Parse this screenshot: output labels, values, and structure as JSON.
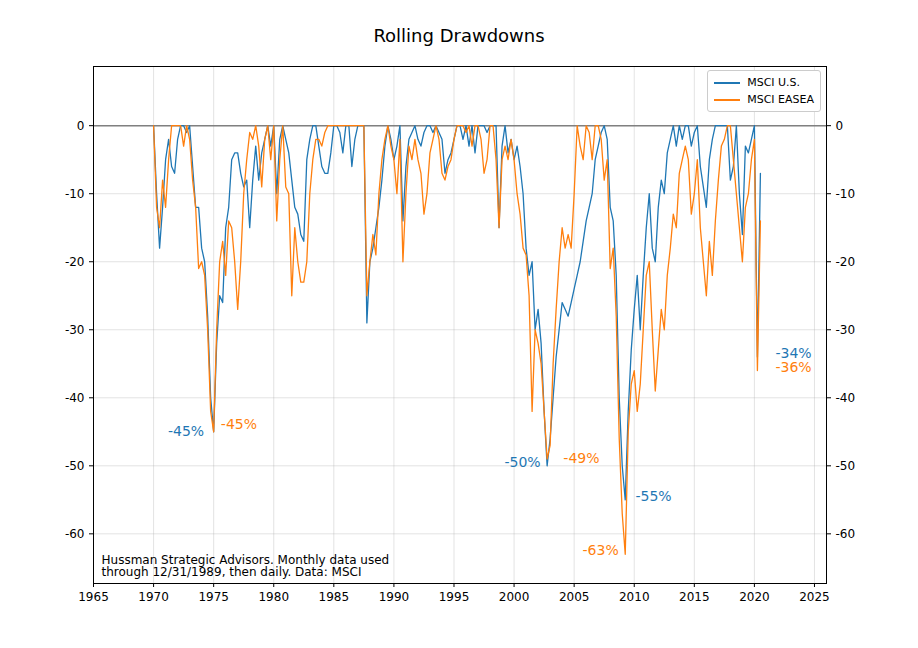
{
  "chart_data": {
    "type": "line",
    "title": "Rolling Drawdowns",
    "x": [
      1970,
      1970.25,
      1970.5,
      1970.75,
      1971,
      1971.25,
      1971.5,
      1971.75,
      1972,
      1972.25,
      1972.5,
      1972.75,
      1973,
      1973.25,
      1973.5,
      1973.75,
      1974,
      1974.25,
      1974.5,
      1974.75,
      1975,
      1975.25,
      1975.5,
      1975.75,
      1976,
      1976.25,
      1976.5,
      1976.75,
      1977,
      1977.25,
      1977.5,
      1977.75,
      1978,
      1978.25,
      1978.5,
      1978.75,
      1979,
      1979.25,
      1979.5,
      1979.75,
      1980,
      1980.25,
      1980.5,
      1980.75,
      1981,
      1981.25,
      1981.5,
      1981.75,
      1982,
      1982.25,
      1982.5,
      1982.75,
      1983,
      1983.25,
      1983.5,
      1983.75,
      1984,
      1984.25,
      1984.5,
      1984.75,
      1985,
      1985.25,
      1985.5,
      1985.75,
      1986,
      1986.25,
      1986.5,
      1986.75,
      1987,
      1987.25,
      1987.5,
      1987.75,
      1988,
      1988.25,
      1988.5,
      1988.75,
      1989,
      1989.25,
      1989.5,
      1989.75,
      1990,
      1990.25,
      1990.5,
      1990.75,
      1991,
      1991.25,
      1991.5,
      1991.75,
      1992,
      1992.25,
      1992.5,
      1992.75,
      1993,
      1993.25,
      1993.5,
      1993.75,
      1994,
      1994.25,
      1994.5,
      1994.75,
      1995,
      1995.25,
      1995.5,
      1995.75,
      1996,
      1996.25,
      1996.5,
      1996.75,
      1997,
      1997.25,
      1997.5,
      1997.75,
      1998,
      1998.25,
      1998.5,
      1998.75,
      1999,
      1999.25,
      1999.5,
      1999.75,
      2000,
      2000.25,
      2000.5,
      2000.75,
      2001,
      2001.25,
      2001.5,
      2001.75,
      2002,
      2002.25,
      2002.5,
      2002.75,
      2003,
      2003.25,
      2003.5,
      2003.75,
      2004,
      2004.25,
      2004.5,
      2004.75,
      2005,
      2005.25,
      2005.5,
      2005.75,
      2006,
      2006.25,
      2006.5,
      2006.75,
      2007,
      2007.25,
      2007.5,
      2007.75,
      2008,
      2008.25,
      2008.5,
      2008.75,
      2009,
      2009.25,
      2009.5,
      2009.75,
      2010,
      2010.25,
      2010.5,
      2010.75,
      2011,
      2011.25,
      2011.5,
      2011.75,
      2012,
      2012.25,
      2012.5,
      2012.75,
      2013,
      2013.25,
      2013.5,
      2013.75,
      2014,
      2014.25,
      2014.5,
      2014.75,
      2015,
      2015.25,
      2015.5,
      2015.75,
      2016,
      2016.25,
      2016.5,
      2016.75,
      2017,
      2017.25,
      2017.5,
      2017.75,
      2018,
      2018.25,
      2018.5,
      2018.75,
      2019,
      2019.25,
      2019.5,
      2019.75,
      2020,
      2020.25,
      2020.5
    ],
    "series": [
      {
        "name": "MSCI U.S.",
        "color": "#1f77b4",
        "values": [
          0,
          -10,
          -18,
          -12,
          -5,
          -2,
          -6,
          -7,
          -2,
          0,
          0,
          -1,
          0,
          -6,
          -12,
          -12,
          -18,
          -20,
          -28,
          -40,
          -45,
          -32,
          -25,
          -26,
          -15,
          -12,
          -5,
          -4,
          -4,
          -7,
          -9,
          -8,
          -15,
          -8,
          -3,
          -8,
          -4,
          -2,
          0,
          -3,
          0,
          -10,
          -2,
          0,
          -2,
          -4,
          -8,
          -12,
          -13,
          -16,
          -17,
          -5,
          -2,
          0,
          0,
          -3,
          -6,
          -7,
          -7,
          -4,
          0,
          0,
          -1,
          -4,
          0,
          0,
          -6,
          -2,
          0,
          0,
          0,
          -29,
          -20,
          -18,
          -15,
          -12,
          -8,
          -3,
          0,
          -2,
          -5,
          -3,
          0,
          -14,
          -6,
          -2,
          -1,
          0,
          -2,
          -3,
          -1,
          0,
          0,
          -1,
          0,
          -1,
          -2,
          -7,
          -5,
          -4,
          -2,
          0,
          0,
          -2,
          0,
          -3,
          0,
          -4,
          0,
          0,
          0,
          -1,
          0,
          0,
          0,
          -15,
          -3,
          0,
          -4,
          -2,
          -5,
          -3,
          -6,
          -10,
          -18,
          -22,
          -20,
          -30,
          -27,
          -32,
          -42,
          -50,
          -46,
          -40,
          -34,
          -30,
          -26,
          -27,
          -28,
          -26,
          -24,
          -22,
          -20,
          -17,
          -14,
          -12,
          -10,
          -5,
          -3,
          -1,
          0,
          -2,
          -12,
          -14,
          -22,
          -40,
          -50,
          -55,
          -42,
          -33,
          -27,
          -22,
          -30,
          -22,
          -15,
          -10,
          -18,
          -20,
          -12,
          -8,
          -10,
          -4,
          -2,
          0,
          -3,
          0,
          -2,
          0,
          0,
          -3,
          -1,
          0,
          -6,
          -9,
          -12,
          -5,
          -2,
          0,
          0,
          0,
          0,
          0,
          -8,
          -6,
          0,
          -10,
          -16,
          -3,
          -4,
          -2,
          0,
          -34,
          -7
        ]
      },
      {
        "name": "MSCI EASEA",
        "color": "#ff7f0e",
        "values": [
          0,
          -12,
          -15,
          -8,
          -12,
          -5,
          0,
          0,
          0,
          0,
          -3,
          0,
          -2,
          -8,
          -12,
          -21,
          -20,
          -22,
          -30,
          -42,
          -45,
          -30,
          -20,
          -17,
          -22,
          -14,
          -15,
          -20,
          -27,
          -20,
          -10,
          -5,
          -1,
          -2,
          0,
          -3,
          -9,
          -2,
          0,
          -5,
          0,
          -14,
          -5,
          0,
          -9,
          -10,
          -25,
          -15,
          -20,
          -23,
          -23,
          -20,
          -10,
          -5,
          -2,
          -2,
          -3,
          -1,
          0,
          0,
          0,
          0,
          0,
          0,
          0,
          0,
          0,
          0,
          0,
          0,
          0,
          -25,
          -20,
          -16,
          -19,
          -10,
          -5,
          -2,
          0,
          -3,
          -5,
          -10,
          -2,
          -20,
          -10,
          -3,
          -5,
          -2,
          -5,
          -7,
          -13,
          -10,
          -4,
          -2,
          0,
          -2,
          -7,
          -8,
          -6,
          -5,
          -2,
          0,
          0,
          0,
          -1,
          0,
          -3,
          0,
          0,
          -2,
          -7,
          -5,
          0,
          0,
          -5,
          -15,
          -5,
          -3,
          -5,
          -2,
          -5,
          -10,
          -13,
          -18,
          -19,
          -25,
          -42,
          -30,
          -32,
          -35,
          -42,
          -49,
          -47,
          -35,
          -27,
          -20,
          -15,
          -18,
          -16,
          -18,
          -10,
          0,
          -3,
          -5,
          0,
          -1,
          -5,
          0,
          0,
          -2,
          -8,
          -5,
          -21,
          -18,
          -28,
          -46,
          -57,
          -63,
          -45,
          -38,
          -36,
          -42,
          -38,
          -30,
          -22,
          -20,
          -30,
          -39,
          -33,
          -27,
          -30,
          -22,
          -18,
          -13,
          -15,
          -7,
          -5,
          -3,
          -5,
          -13,
          -10,
          -5,
          -15,
          -20,
          -25,
          -17,
          -22,
          -14,
          -8,
          -3,
          -2,
          0,
          0,
          -5,
          -10,
          -15,
          -20,
          -12,
          -10,
          -5,
          -2,
          -36,
          -14
        ]
      }
    ],
    "xlim": [
      1965,
      2026
    ],
    "ylim": [
      -67.3,
      8.7
    ],
    "xticks": [
      1965,
      1970,
      1975,
      1980,
      1985,
      1990,
      1995,
      2000,
      2005,
      2010,
      2015,
      2020,
      2025
    ],
    "yticks": [
      0,
      -10,
      -20,
      -30,
      -40,
      -50,
      -60
    ],
    "grid": true,
    "legend": "upper right",
    "baseline": 0,
    "annotations": [
      {
        "text": "-45%",
        "x": 1971.2,
        "y": -45,
        "color": "#1f77b4"
      },
      {
        "text": "-45%",
        "x": 1975.6,
        "y": -44,
        "color": "#ff7f0e"
      },
      {
        "text": "-50%",
        "x": 1999.2,
        "y": -49.5,
        "color": "#1f77b4"
      },
      {
        "text": "-49%",
        "x": 2004.1,
        "y": -48.9,
        "color": "#ff7f0e"
      },
      {
        "text": "-55%",
        "x": 2010.1,
        "y": -54.5,
        "color": "#1f77b4"
      },
      {
        "text": "-63%",
        "x": 2005.7,
        "y": -62.5,
        "color": "#ff7f0e"
      },
      {
        "text": "-34%",
        "x": 2021.75,
        "y": -33.5,
        "color": "#1f77b4"
      },
      {
        "text": "-36%",
        "x": 2021.75,
        "y": -35.5,
        "color": "#ff7f0e"
      }
    ],
    "caption": [
      "Hussman Strategic Advisors. Monthly data used",
      "through 12/31/1989, then daily. Data: MSCI"
    ]
  }
}
